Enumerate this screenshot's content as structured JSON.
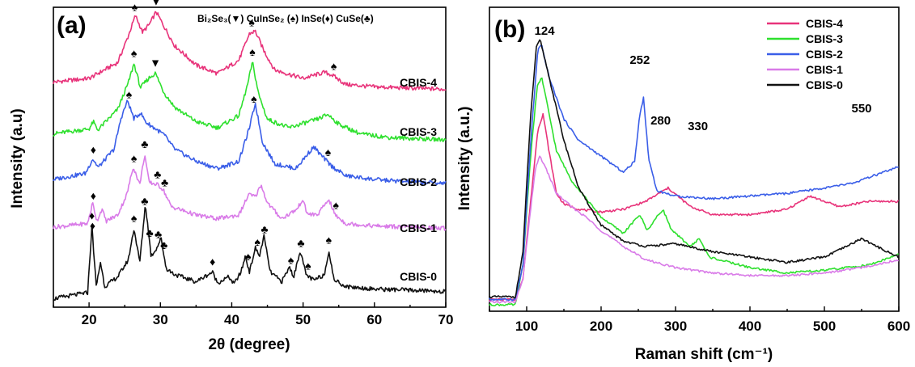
{
  "chart_data": [
    {
      "panel": "(a)",
      "type": "line",
      "xlabel": "2θ (degree)",
      "ylabel": "Intensity (a.u)",
      "xlim": [
        15,
        70
      ],
      "xticks": [
        20,
        30,
        40,
        50,
        60,
        70
      ],
      "y_ticks_shown": false,
      "phase_legend": "Bi₂Se₃(▼) CuInSe₂ (♠) InSe(♦) CuSe(♣)",
      "series": [
        {
          "name": "CBIS-4",
          "color": "#e8337a",
          "x": [
            15,
            20,
            24,
            25.5,
            26.5,
            27.5,
            28.5,
            29.4,
            30.5,
            32,
            35,
            38,
            41,
            42.5,
            43.3,
            44.5,
            46,
            50,
            53,
            54,
            56,
            60,
            65,
            70
          ],
          "y": [
            0.42,
            0.45,
            0.58,
            0.8,
            0.97,
            0.83,
            0.9,
            1.0,
            0.88,
            0.72,
            0.56,
            0.49,
            0.6,
            0.82,
            0.84,
            0.68,
            0.52,
            0.45,
            0.5,
            0.48,
            0.4,
            0.38,
            0.37,
            0.36
          ]
        },
        {
          "name": "CBIS-3",
          "color": "#2ee02e",
          "x": [
            15,
            20,
            20.6,
            21.2,
            24,
            25.5,
            26.3,
            27.2,
            28.4,
            29.3,
            30.5,
            32,
            35,
            38,
            41,
            42.2,
            42.9,
            43.8,
            45,
            48,
            52,
            53.5,
            55,
            58,
            62,
            70
          ],
          "y": [
            0.4,
            0.44,
            0.5,
            0.43,
            0.6,
            0.82,
            0.98,
            0.78,
            0.86,
            0.9,
            0.74,
            0.62,
            0.5,
            0.45,
            0.55,
            0.8,
            0.99,
            0.72,
            0.52,
            0.45,
            0.52,
            0.56,
            0.48,
            0.4,
            0.37,
            0.35
          ]
        },
        {
          "name": "CBIS-2",
          "color": "#3a5ee8",
          "x": [
            15,
            19.5,
            20.5,
            21.3,
            23.5,
            24.5,
            25.4,
            26.3,
            27.2,
            28,
            29,
            30.5,
            32,
            35,
            38,
            41,
            42.5,
            43.3,
            44.3,
            46,
            49,
            50.5,
            51.5,
            52.5,
            54,
            56,
            60,
            65,
            70
          ],
          "y": [
            0.35,
            0.4,
            0.52,
            0.45,
            0.6,
            0.86,
            1.0,
            0.85,
            0.9,
            0.82,
            0.78,
            0.72,
            0.6,
            0.5,
            0.44,
            0.5,
            0.78,
            0.98,
            0.66,
            0.48,
            0.44,
            0.55,
            0.62,
            0.55,
            0.46,
            0.38,
            0.35,
            0.33,
            0.32
          ]
        },
        {
          "name": "CBIS-1",
          "color": "#d97be8",
          "x": [
            15,
            19.8,
            20.5,
            21.1,
            21.8,
            22.4,
            24,
            25.3,
            26.2,
            27.1,
            27.8,
            28.4,
            29.6,
            30.4,
            31.5,
            35,
            38,
            41,
            42.4,
            43.3,
            44.1,
            45,
            47,
            49.2,
            49.9,
            50.6,
            52,
            53.6,
            54.5,
            56,
            60,
            65,
            70
          ],
          "y": [
            0.35,
            0.38,
            0.55,
            0.4,
            0.5,
            0.4,
            0.45,
            0.62,
            0.85,
            0.7,
            0.95,
            0.72,
            0.7,
            0.66,
            0.52,
            0.45,
            0.42,
            0.45,
            0.62,
            0.6,
            0.7,
            0.55,
            0.42,
            0.5,
            0.58,
            0.46,
            0.45,
            0.58,
            0.45,
            0.38,
            0.36,
            0.35,
            0.34
          ]
        },
        {
          "name": "CBIS-0",
          "color": "#111111",
          "x": [
            15,
            19.8,
            20.4,
            21,
            21.6,
            22.2,
            24,
            25.5,
            26.3,
            27.1,
            27.9,
            28.7,
            29.5,
            30.1,
            30.8,
            32,
            35,
            37.3,
            38,
            39.6,
            40.3,
            41.3,
            41.9,
            42.5,
            43.3,
            43.9,
            44.5,
            45.4,
            47,
            48.1,
            48.7,
            49.6,
            50.4,
            51.5,
            53,
            53.6,
            54.3,
            56,
            60,
            65,
            70
          ],
          "y": [
            0.2,
            0.25,
            0.8,
            0.3,
            0.5,
            0.3,
            0.38,
            0.52,
            0.78,
            0.5,
            0.98,
            0.55,
            0.62,
            0.7,
            0.45,
            0.4,
            0.34,
            0.42,
            0.33,
            0.38,
            0.32,
            0.42,
            0.55,
            0.42,
            0.62,
            0.55,
            0.72,
            0.42,
            0.34,
            0.46,
            0.38,
            0.6,
            0.4,
            0.35,
            0.4,
            0.6,
            0.36,
            0.3,
            0.28,
            0.27,
            0.26
          ]
        }
      ],
      "annotations": [
        {
          "series": "CBIS-4",
          "x": 26.4,
          "symbol": "♠"
        },
        {
          "series": "CBIS-4",
          "x": 29.4,
          "symbol": "▼"
        },
        {
          "series": "CBIS-4",
          "x": 42.8,
          "symbol": "♠"
        },
        {
          "series": "CBIS-4",
          "x": 54.3,
          "symbol": "♠"
        },
        {
          "series": "CBIS-3",
          "x": 26.3,
          "symbol": "♠"
        },
        {
          "series": "CBIS-3",
          "x": 29.3,
          "symbol": "▼"
        },
        {
          "series": "CBIS-3",
          "x": 42.9,
          "symbol": "♠"
        },
        {
          "series": "CBIS-2",
          "x": 20.6,
          "symbol": "♦"
        },
        {
          "series": "CBIS-2",
          "x": 25.6,
          "symbol": "♠"
        },
        {
          "series": "CBIS-2",
          "x": 43.1,
          "symbol": "♠"
        },
        {
          "series": "CBIS-2",
          "x": 53.5,
          "symbol": "♠"
        },
        {
          "series": "CBIS-1",
          "x": 20.6,
          "symbol": "♦"
        },
        {
          "series": "CBIS-1",
          "x": 26.3,
          "symbol": "♠"
        },
        {
          "series": "CBIS-1",
          "x": 27.8,
          "symbol": "♣"
        },
        {
          "series": "CBIS-1",
          "x": 29.6,
          "symbol": "♣"
        },
        {
          "series": "CBIS-1",
          "x": 30.6,
          "symbol": "♣"
        },
        {
          "series": "CBIS-1",
          "x": 54.6,
          "symbol": "♠"
        },
        {
          "series": "CBIS-0",
          "x": 20.4,
          "symbol": "♦"
        },
        {
          "series": "CBIS-0",
          "x": 26.3,
          "symbol": "♠"
        },
        {
          "series": "CBIS-0",
          "x": 28.5,
          "symbol": "♣"
        },
        {
          "series": "CBIS-0",
          "x": 42.3,
          "symbol": "♠"
        },
        {
          "series": "CBIS-0",
          "x": 43.6,
          "symbol": "♠"
        },
        {
          "series": "CBIS-0",
          "x": 44.6,
          "symbol": "♣"
        },
        {
          "series": "CBIS-0",
          "x": 49.7,
          "symbol": "♣"
        },
        {
          "series": "CBIS-0",
          "x": 53.6,
          "symbol": "♠"
        },
        {
          "series": "CBIS-off0",
          "x": 20.5,
          "symbol": "♦",
          "base": "CBIS-0",
          "dy": 0.0
        },
        {
          "series": "CBIS-off1",
          "x": 27.8,
          "symbol": "♣",
          "base": "CBIS-0",
          "dy": 0.0
        },
        {
          "series": "CBIS-off2",
          "x": 29.7,
          "symbol": "♣",
          "base": "CBIS-0",
          "dy": 0.0
        },
        {
          "series": "CBIS-off3",
          "x": 30.5,
          "symbol": "♣",
          "base": "CBIS-0",
          "dy": 0.0
        },
        {
          "series": "CBIS-off4",
          "x": 37.3,
          "symbol": "♦",
          "base": "CBIS-0",
          "dy": 0.0
        },
        {
          "series": "CBIS-off5",
          "x": 48.3,
          "symbol": "♠",
          "base": "CBIS-0",
          "dy": 0.0
        },
        {
          "series": "CBIS-off6",
          "x": 50.7,
          "symbol": "♠",
          "base": "CBIS-0",
          "dy": 0.0
        }
      ]
    },
    {
      "panel": "(b)",
      "type": "line",
      "xlabel": "Raman shift (cm⁻¹)",
      "ylabel": "Intensity (a.u.)",
      "xlim": [
        50,
        600
      ],
      "xticks": [
        100,
        200,
        300,
        400,
        500,
        600
      ],
      "y_ticks_shown": false,
      "peak_labels": [
        {
          "label": "124",
          "x": 124
        },
        {
          "label": "252",
          "x": 252
        },
        {
          "label": "280",
          "x": 280
        },
        {
          "label": "330",
          "x": 330
        },
        {
          "label": "550",
          "x": 550
        }
      ],
      "legend_position": "top-right",
      "series": [
        {
          "name": "CBIS-4",
          "color": "#e8337a",
          "x": [
            50,
            85,
            95,
            105,
            115,
            122,
            130,
            140,
            150,
            170,
            200,
            230,
            260,
            290,
            320,
            350,
            400,
            450,
            480,
            520,
            560,
            600
          ],
          "y": [
            0.02,
            0.02,
            0.1,
            0.38,
            0.66,
            0.72,
            0.58,
            0.42,
            0.38,
            0.36,
            0.35,
            0.36,
            0.39,
            0.44,
            0.37,
            0.34,
            0.34,
            0.36,
            0.41,
            0.37,
            0.39,
            0.39
          ]
        },
        {
          "name": "CBIS-3",
          "color": "#2ee02e",
          "x": [
            50,
            85,
            95,
            105,
            114,
            120,
            128,
            140,
            160,
            180,
            200,
            230,
            252,
            262,
            272,
            283,
            295,
            320,
            332,
            345,
            400,
            450,
            500,
            560,
            600
          ],
          "y": [
            0.0,
            0.0,
            0.15,
            0.55,
            0.82,
            0.86,
            0.75,
            0.58,
            0.47,
            0.4,
            0.33,
            0.27,
            0.34,
            0.28,
            0.32,
            0.36,
            0.28,
            0.22,
            0.25,
            0.18,
            0.14,
            0.12,
            0.13,
            0.15,
            0.19
          ]
        },
        {
          "name": "CBIS-2",
          "color": "#3a5ee8",
          "x": [
            50,
            85,
            95,
            105,
            115,
            120,
            130,
            150,
            170,
            200,
            230,
            245,
            252,
            257,
            264,
            275,
            300,
            350,
            400,
            450,
            500,
            540,
            570,
            600
          ],
          "y": [
            0.02,
            0.02,
            0.15,
            0.6,
            0.96,
            0.98,
            0.86,
            0.7,
            0.62,
            0.56,
            0.5,
            0.54,
            0.72,
            0.78,
            0.55,
            0.43,
            0.41,
            0.4,
            0.41,
            0.42,
            0.44,
            0.46,
            0.49,
            0.52
          ]
        },
        {
          "name": "CBIS-1",
          "color": "#d97be8",
          "x": [
            50,
            85,
            95,
            105,
            112,
            118,
            128,
            140,
            160,
            180,
            200,
            230,
            260,
            300,
            350,
            400,
            450,
            500,
            550,
            600
          ],
          "y": [
            0.01,
            0.01,
            0.1,
            0.35,
            0.52,
            0.56,
            0.5,
            0.42,
            0.37,
            0.33,
            0.28,
            0.22,
            0.17,
            0.14,
            0.12,
            0.11,
            0.11,
            0.12,
            0.14,
            0.17
          ]
        },
        {
          "name": "CBIS-0",
          "color": "#111111",
          "x": [
            50,
            85,
            95,
            105,
            113,
            118,
            125,
            135,
            150,
            170,
            200,
            230,
            260,
            300,
            350,
            400,
            450,
            500,
            530,
            550,
            570,
            600
          ],
          "y": [
            0.03,
            0.03,
            0.2,
            0.7,
            0.97,
            1.0,
            0.92,
            0.8,
            0.62,
            0.44,
            0.3,
            0.24,
            0.22,
            0.23,
            0.2,
            0.18,
            0.16,
            0.18,
            0.22,
            0.25,
            0.22,
            0.18
          ]
        }
      ]
    }
  ]
}
